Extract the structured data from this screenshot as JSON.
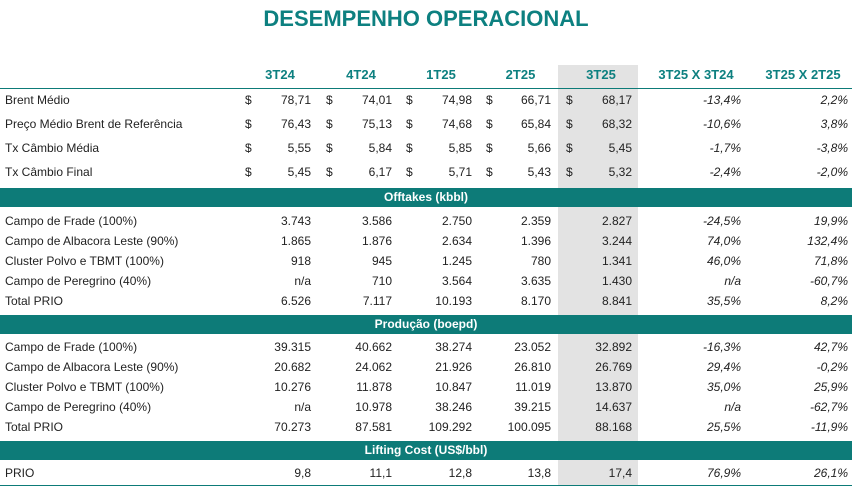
{
  "header": {
    "title": "DESEMPENHO OPERACIONAL"
  },
  "table": {
    "columns": [
      "3T24",
      "4T24",
      "1T25",
      "2T25",
      "3T25",
      "3T25 X 3T24",
      "3T25 X 2T25"
    ],
    "sections": [
      {
        "currency": "$",
        "rows": [
          {
            "label": "Brent Médio",
            "values": [
              "78,71",
              "74,01",
              "74,98",
              "66,71",
              "68,17",
              "-13,4%",
              "2,2%"
            ]
          },
          {
            "label": "Preço Médio Brent de Referência",
            "values": [
              "76,43",
              "75,13",
              "74,68",
              "65,84",
              "68,32",
              "-10,6%",
              "3,8%"
            ]
          },
          {
            "label": "Tx Câmbio Média",
            "values": [
              "5,55",
              "5,84",
              "5,85",
              "5,66",
              "5,45",
              "-1,7%",
              "-3,8%"
            ]
          },
          {
            "label": "Tx Câmbio Final",
            "values": [
              "5,45",
              "6,17",
              "5,71",
              "5,43",
              "5,32",
              "-2,4%",
              "-2,0%"
            ]
          }
        ]
      },
      {
        "title": "Offtakes (kbbl)",
        "rows": [
          {
            "label": "Campo de Frade (100%)",
            "values": [
              "3.743",
              "3.586",
              "2.750",
              "2.359",
              "2.827",
              "-24,5%",
              "19,9%"
            ]
          },
          {
            "label": "Campo de Albacora Leste (90%)",
            "values": [
              "1.865",
              "1.876",
              "2.634",
              "1.396",
              "3.244",
              "74,0%",
              "132,4%"
            ]
          },
          {
            "label": "Cluster Polvo e TBMT (100%)",
            "values": [
              "918",
              "945",
              "1.245",
              "780",
              "1.341",
              "46,0%",
              "71,8%"
            ]
          },
          {
            "label": "Campo de Peregrino (40%)",
            "values": [
              "n/a",
              "710",
              "3.564",
              "3.635",
              "1.430",
              "n/a",
              "-60,7%"
            ]
          },
          {
            "label": "Total PRIO",
            "values": [
              "6.526",
              "7.117",
              "10.193",
              "8.170",
              "8.841",
              "35,5%",
              "8,2%"
            ]
          }
        ]
      },
      {
        "title": "Produção (boepd)",
        "rows": [
          {
            "label": "Campo de Frade (100%)",
            "values": [
              "39.315",
              "40.662",
              "38.274",
              "23.052",
              "32.892",
              "-16,3%",
              "42,7%"
            ]
          },
          {
            "label": "Campo de Albacora Leste (90%)",
            "values": [
              "20.682",
              "24.062",
              "21.926",
              "26.810",
              "26.769",
              "29,4%",
              "-0,2%"
            ]
          },
          {
            "label": "Cluster Polvo e TBMT (100%)",
            "values": [
              "10.276",
              "11.878",
              "10.847",
              "11.019",
              "13.870",
              "35,0%",
              "25,9%"
            ]
          },
          {
            "label": "Campo de Peregrino (40%)",
            "values": [
              "n/a",
              "10.978",
              "38.246",
              "39.215",
              "14.637",
              "n/a",
              "-62,7%"
            ]
          },
          {
            "label": "Total PRIO",
            "values": [
              "70.273",
              "87.581",
              "109.292",
              "100.095",
              "88.168",
              "25,5%",
              "-11,9%"
            ]
          }
        ]
      },
      {
        "title": "Lifting Cost (US$/bbl)",
        "rows": [
          {
            "label": "PRIO",
            "values": [
              "9,8",
              "11,1",
              "12,8",
              "13,8",
              "17,4",
              "76,9%",
              "26,1%"
            ]
          }
        ]
      }
    ]
  }
}
